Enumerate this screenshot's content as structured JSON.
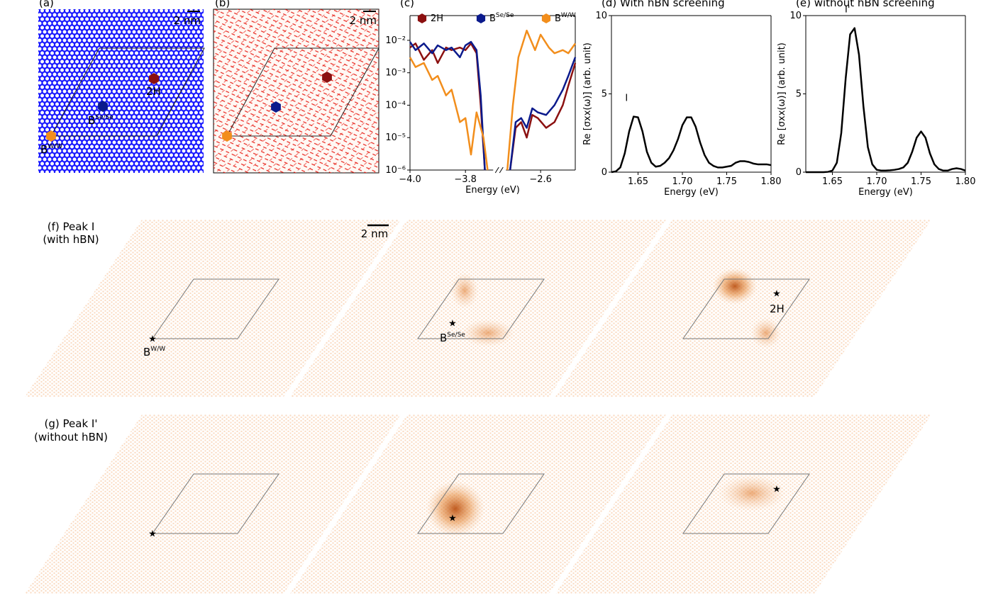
{
  "panel_a": {
    "label": "(a)",
    "scale_bar": "2 nm",
    "sites": [
      {
        "name": "2H"
      },
      {
        "name": "B",
        "sup": "Se/Se"
      },
      {
        "name": "B",
        "sup": "W/W"
      }
    ]
  },
  "panel_b": {
    "label": "(b)",
    "scale_bar": "2 nm"
  },
  "chart_data": [
    {
      "type": "line",
      "title": "(c)",
      "xlabel": "Energy (eV)",
      "log_y": true,
      "xlims": [
        [
          -4.0,
          -3.7
        ],
        [
          -2.725,
          -2.475
        ]
      ],
      "xticks": [
        {
          "value": -4.0,
          "label": "−4.0"
        },
        {
          "value": -3.8,
          "label": "−3.8"
        },
        {
          "value": -2.6,
          "label": "−2.6"
        }
      ],
      "ylim": [
        1e-06,
        0.058
      ],
      "yticks": [
        {
          "value": 0.01,
          "label": "10⁻²"
        },
        {
          "value": 0.001,
          "label": "10⁻³"
        },
        {
          "value": 0.0001,
          "label": "10⁻⁴"
        },
        {
          "value": 1e-05,
          "label": "10⁻⁵"
        },
        {
          "value": 1e-06,
          "label": "10⁻⁶"
        }
      ],
      "series": [
        {
          "name": "2H",
          "color": "#8b1010",
          "x": [
            -4.0,
            -3.98,
            -3.95,
            -3.92,
            -3.9,
            -3.87,
            -3.85,
            -3.82,
            -3.8,
            -3.78,
            -3.76,
            -3.745,
            -3.73,
            -2.71,
            -2.69,
            -2.67,
            -2.65,
            -2.63,
            -2.61,
            -2.58,
            -2.55,
            -2.52,
            -2.5,
            -2.475
          ],
          "values": [
            0.006,
            0.008,
            0.0025,
            0.005,
            0.002,
            0.006,
            0.005,
            0.006,
            0.005,
            0.008,
            0.004,
            0.0001,
            1e-06,
            1e-06,
            2e-05,
            3e-05,
            1e-05,
            5e-05,
            4e-05,
            2e-05,
            3e-05,
            0.0001,
            0.0004,
            0.002
          ]
        },
        {
          "name": "B",
          "name_sup": "Se/Se",
          "color": "#0b1a8c",
          "x": [
            -4.0,
            -3.98,
            -3.95,
            -3.92,
            -3.9,
            -3.87,
            -3.85,
            -3.82,
            -3.8,
            -3.78,
            -3.76,
            -3.745,
            -3.73,
            -2.71,
            -2.69,
            -2.67,
            -2.65,
            -2.63,
            -2.61,
            -2.58,
            -2.55,
            -2.52,
            -2.5,
            -2.475
          ],
          "values": [
            0.009,
            0.005,
            0.008,
            0.004,
            0.007,
            0.005,
            0.006,
            0.003,
            0.007,
            0.009,
            0.005,
            0.0002,
            1e-06,
            1e-06,
            3e-05,
            4e-05,
            2e-05,
            8e-05,
            6e-05,
            5e-05,
            0.0001,
            0.0003,
            0.0008,
            0.003
          ]
        },
        {
          "name": "B",
          "name_sup": "W/W",
          "color": "#f28e1c",
          "x": [
            -4.0,
            -3.98,
            -3.95,
            -3.92,
            -3.9,
            -3.87,
            -3.85,
            -3.82,
            -3.8,
            -3.78,
            -3.76,
            -3.735,
            -3.72,
            -2.72,
            -2.7,
            -2.68,
            -2.65,
            -2.62,
            -2.6,
            -2.57,
            -2.55,
            -2.52,
            -2.5,
            -2.475
          ],
          "values": [
            0.003,
            0.0015,
            0.002,
            0.0006,
            0.0008,
            0.0002,
            0.0003,
            3e-05,
            4e-05,
            3e-06,
            6e-05,
            1e-05,
            1e-06,
            1e-06,
            0.0001,
            0.003,
            0.02,
            0.005,
            0.015,
            0.006,
            0.004,
            0.005,
            0.004,
            0.008
          ]
        }
      ]
    },
    {
      "type": "line",
      "title": "(d) With hBN screening",
      "xlabel": "Energy (eV)",
      "ylabel": "Re [σxx(ω)] (arb. unit)",
      "annotation": "I",
      "color": "#000000",
      "xlim": [
        1.62,
        1.8
      ],
      "xticks": [
        1.65,
        {
          "value": 1.7,
          "label": "1.70"
        },
        1.75,
        {
          "value": 1.8,
          "label": "1.80"
        }
      ],
      "ylim": [
        0,
        10
      ],
      "yticks": [
        0,
        5,
        10
      ],
      "x": [
        1.62,
        1.625,
        1.63,
        1.635,
        1.64,
        1.645,
        1.65,
        1.655,
        1.66,
        1.665,
        1.67,
        1.675,
        1.68,
        1.685,
        1.69,
        1.695,
        1.7,
        1.705,
        1.71,
        1.715,
        1.72,
        1.725,
        1.73,
        1.735,
        1.74,
        1.745,
        1.75,
        1.755,
        1.76,
        1.765,
        1.77,
        1.775,
        1.78,
        1.785,
        1.79,
        1.795,
        1.8
      ],
      "values": [
        0,
        0.05,
        0.3,
        1.2,
        2.6,
        3.55,
        3.5,
        2.6,
        1.3,
        0.6,
        0.35,
        0.4,
        0.6,
        0.9,
        1.4,
        2.1,
        3.0,
        3.5,
        3.5,
        2.9,
        1.9,
        1.1,
        0.6,
        0.4,
        0.3,
        0.3,
        0.35,
        0.4,
        0.6,
        0.7,
        0.7,
        0.65,
        0.55,
        0.5,
        0.5,
        0.5,
        0.45
      ]
    },
    {
      "type": "line",
      "title": "(e) without hBN screening",
      "xlabel": "Energy (eV)",
      "ylabel": "Re [σxx(ω)] (arb. unit)",
      "annotation": "I'",
      "color": "#000000",
      "xlim": [
        1.62,
        1.8
      ],
      "xticks": [
        1.65,
        {
          "value": 1.7,
          "label": "1.70"
        },
        1.75,
        {
          "value": 1.8,
          "label": "1.80"
        }
      ],
      "ylim": [
        0,
        10
      ],
      "yticks": [
        0,
        5,
        10
      ],
      "x": [
        1.62,
        1.625,
        1.63,
        1.635,
        1.64,
        1.645,
        1.65,
        1.655,
        1.66,
        1.665,
        1.67,
        1.675,
        1.68,
        1.685,
        1.69,
        1.695,
        1.7,
        1.705,
        1.71,
        1.715,
        1.72,
        1.725,
        1.73,
        1.735,
        1.74,
        1.745,
        1.75,
        1.755,
        1.76,
        1.765,
        1.77,
        1.775,
        1.78,
        1.785,
        1.79,
        1.795,
        1.8
      ],
      "values": [
        0,
        0,
        0,
        0,
        0,
        0.02,
        0.1,
        0.6,
        2.5,
        6.0,
        8.8,
        9.2,
        7.5,
        4.2,
        1.6,
        0.5,
        0.15,
        0.1,
        0.1,
        0.12,
        0.15,
        0.2,
        0.3,
        0.6,
        1.3,
        2.2,
        2.6,
        2.2,
        1.2,
        0.5,
        0.2,
        0.1,
        0.1,
        0.2,
        0.25,
        0.2,
        0.1
      ]
    }
  ],
  "panel_f": {
    "label": "(f) Peak I",
    "sublabel": "(with hBN)",
    "scale_bar": "2 nm",
    "sites": [
      {
        "name": "B",
        "sup": "W/W"
      },
      {
        "name": "B",
        "sup": "Se/Se"
      },
      {
        "name": "2H"
      }
    ]
  },
  "panel_g": {
    "label": "(g) Peak I'",
    "sublabel": "(without hBN)"
  }
}
